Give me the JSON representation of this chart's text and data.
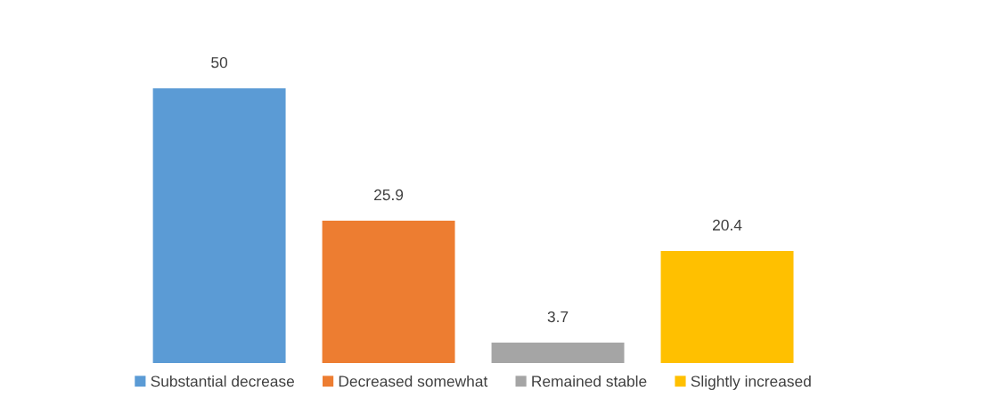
{
  "chart_data": {
    "type": "bar",
    "categories": [
      null
    ],
    "series": [
      {
        "name": "Substantial decrease",
        "color": "#5b9bd5",
        "values": [
          50
        ]
      },
      {
        "name": "Decreased somewhat",
        "color": "#ed7d31",
        "values": [
          25.9
        ]
      },
      {
        "name": "Remained stable",
        "color": "#a5a5a5",
        "values": [
          3.7
        ]
      },
      {
        "name": "Slightly increased",
        "color": "#ffc000",
        "values": [
          20.4
        ]
      }
    ],
    "data_labels": true,
    "legend": "bottom",
    "tick_labels": false
  }
}
